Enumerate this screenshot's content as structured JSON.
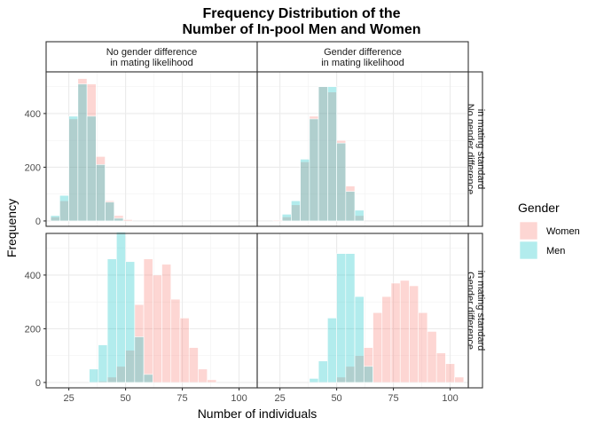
{
  "chart_data": {
    "type": "bar",
    "title": [
      "Frequency Distribution of the",
      "Number of In-pool Men and Women"
    ],
    "xlabel": "Number of individuals",
    "ylabel": "Frequency",
    "xlim": [
      15,
      108
    ],
    "ylim": [
      -20,
      555
    ],
    "xticks": [
      25,
      50,
      75,
      100
    ],
    "yticks": [
      0,
      200,
      400
    ],
    "bin_width": 4,
    "col_strips": [
      [
        "No gender difference",
        "in mating likelihood"
      ],
      [
        "Gender difference",
        "in mating likelihood"
      ]
    ],
    "row_strips": [
      [
        "No gender difference",
        "in mating standard"
      ],
      [
        "Gender difference",
        "in mating standard"
      ]
    ],
    "legend": {
      "title": "Gender",
      "placement": "right",
      "entries": [
        {
          "label": "Women",
          "color": "#F8766D"
        },
        {
          "label": "Men",
          "color": "#00BFC4"
        }
      ]
    },
    "panels": [
      {
        "row": 0,
        "col": 0,
        "series": [
          {
            "name": "Women",
            "bins": [
              17,
              21,
              25,
              29,
              33,
              37,
              41,
              45,
              49
            ],
            "values": [
              15,
              75,
              380,
              530,
              510,
              240,
              75,
              20,
              5
            ]
          },
          {
            "name": "Men",
            "bins": [
              17,
              21,
              25,
              29,
              33,
              37,
              41,
              45
            ],
            "values": [
              20,
              95,
              390,
              510,
              390,
              210,
              70,
              10
            ]
          }
        ]
      },
      {
        "row": 0,
        "col": 1,
        "series": [
          {
            "name": "Women",
            "bins": [
              22,
              26,
              30,
              34,
              38,
              42,
              46,
              50,
              54,
              58
            ],
            "values": [
              3,
              15,
              60,
              220,
              390,
              500,
              480,
              300,
              130,
              20
            ]
          },
          {
            "name": "Men",
            "bins": [
              26,
              30,
              34,
              38,
              42,
              46,
              50,
              54,
              58
            ],
            "values": [
              25,
              75,
              230,
              380,
              500,
              500,
              290,
              110,
              40
            ]
          }
        ]
      },
      {
        "row": 1,
        "col": 0,
        "series": [
          {
            "name": "Women",
            "bins": [
              38,
              42,
              46,
              50,
              54,
              58,
              62,
              66,
              70,
              74,
              78,
              82,
              86
            ],
            "values": [
              5,
              20,
              60,
              120,
              290,
              460,
              400,
              440,
              310,
              240,
              130,
              50,
              10
            ]
          },
          {
            "name": "Men",
            "bins": [
              34,
              38,
              42,
              46,
              50,
              54,
              58
            ],
            "values": [
              50,
              140,
              460,
              560,
              450,
              170,
              30
            ]
          }
        ]
      },
      {
        "row": 1,
        "col": 1,
        "series": [
          {
            "name": "Women",
            "bins": [
              50,
              54,
              58,
              62,
              66,
              70,
              74,
              78,
              82,
              86,
              90,
              94,
              98,
              102
            ],
            "values": [
              20,
              60,
              100,
              130,
              260,
              320,
              370,
              380,
              360,
              260,
              190,
              110,
              70,
              20
            ]
          },
          {
            "name": "Men",
            "bins": [
              38,
              42,
              46,
              50,
              54,
              58,
              62
            ],
            "values": [
              15,
              80,
              240,
              480,
              480,
              320,
              60
            ]
          }
        ]
      }
    ]
  }
}
